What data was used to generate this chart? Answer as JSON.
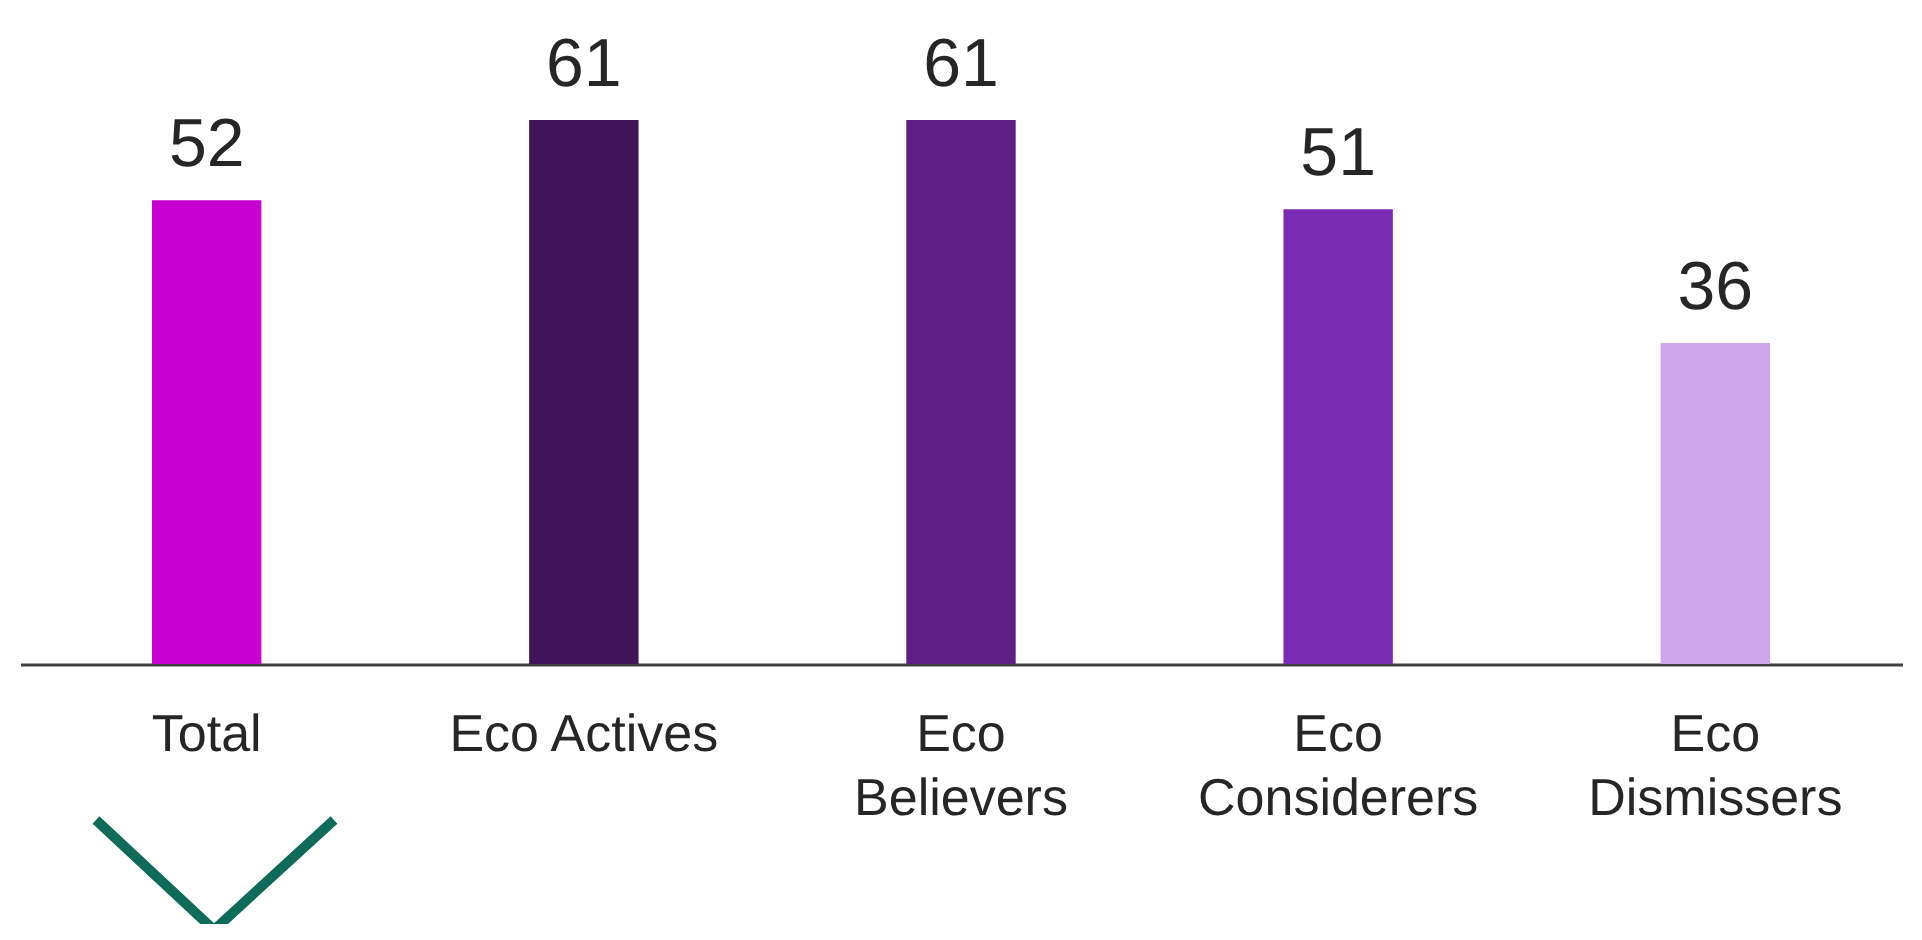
{
  "chart_data": {
    "type": "bar",
    "categories": [
      "Total",
      "Eco Actives",
      "Eco Believers",
      "Eco Considerers",
      "Eco Dismissers"
    ],
    "values": [
      52,
      61,
      61,
      51,
      36
    ],
    "colors": [
      "#c800d2",
      "#3f1459",
      "#5e1e86",
      "#7b2ab5",
      "#cda5e8"
    ],
    "data_labels": true
  }
}
